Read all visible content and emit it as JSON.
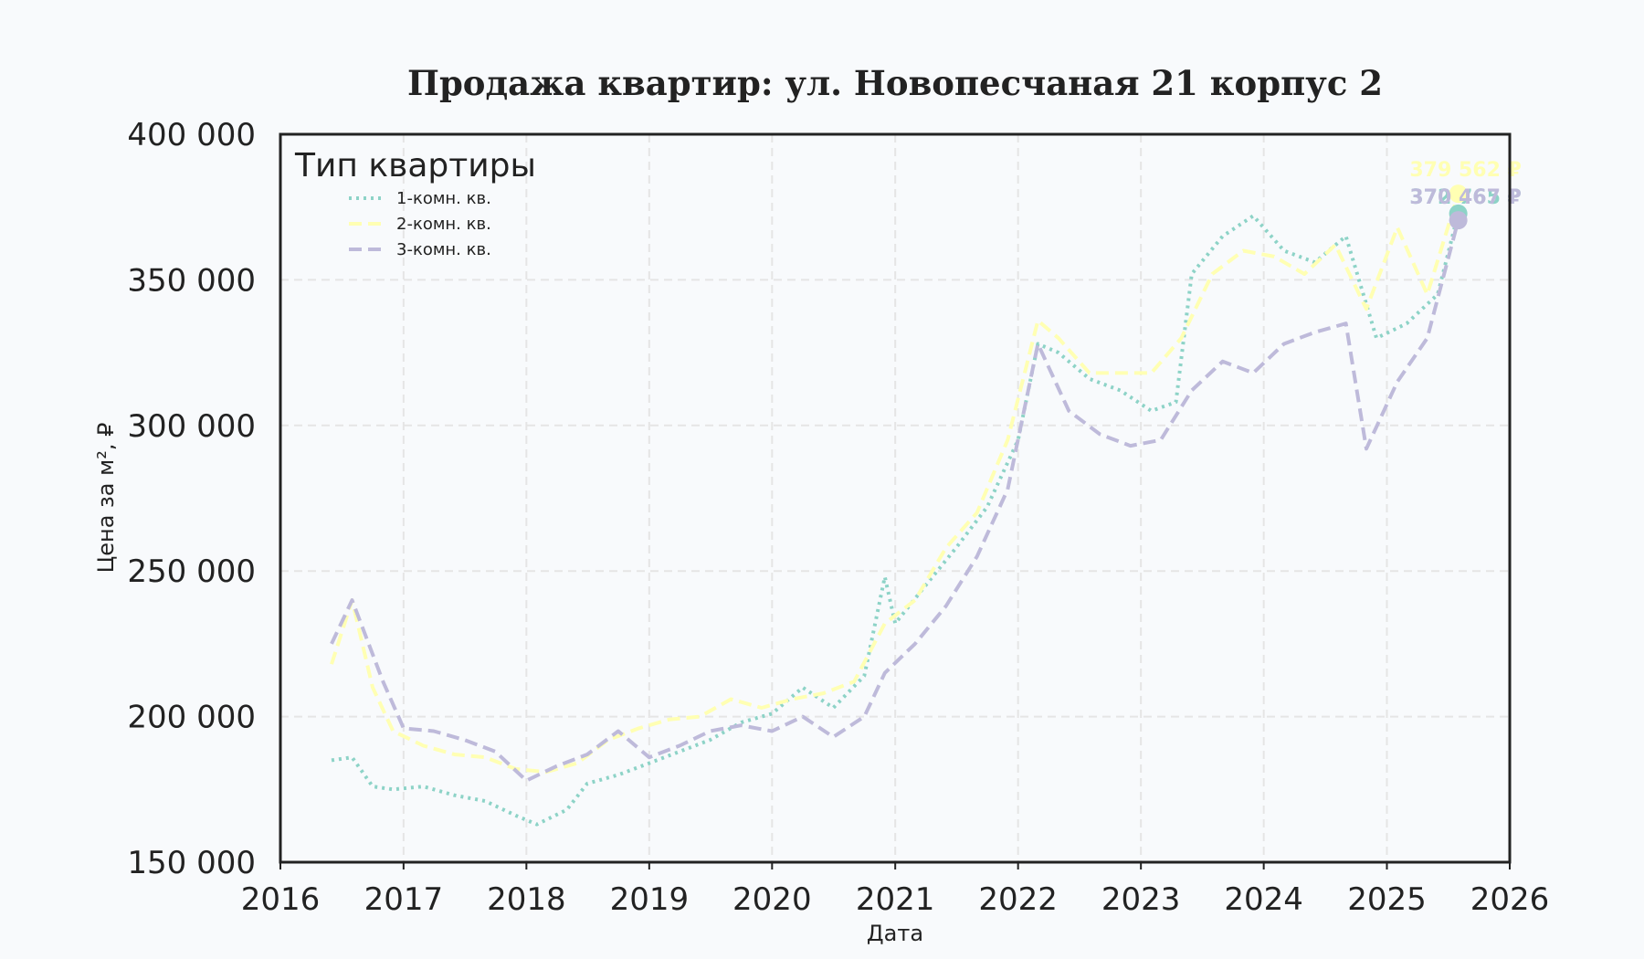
{
  "chart_data": {
    "type": "line",
    "title": "Продажа квартир: ул. Новопесчаная 21 корпус 2",
    "xlabel": "Дата",
    "ylabel": "Цена за м², ₽",
    "xlim": [
      "2016-01-01",
      "2026-01-01"
    ],
    "ylim": [
      150000,
      400000
    ],
    "x_ticks": [
      "2016",
      "2017",
      "2018",
      "2019",
      "2020",
      "2021",
      "2022",
      "2023",
      "2024",
      "2025",
      "2026"
    ],
    "y_ticks": [
      150000,
      200000,
      250000,
      300000,
      350000,
      400000
    ],
    "y_tick_labels": [
      "150 000",
      "200 000",
      "250 000",
      "300 000",
      "350 000",
      "400 000"
    ],
    "grid": true,
    "legend": {
      "title": "Тип квартиры",
      "placement": "top-left"
    },
    "series": [
      {
        "name": "1-комн. кв.",
        "color": "#8dd3c7",
        "style": "dotted",
        "end_label": "372 765 ₽",
        "points": [
          [
            "2016-06-01",
            185000
          ],
          [
            "2016-08-01",
            186000
          ],
          [
            "2016-10-01",
            176000
          ],
          [
            "2016-12-01",
            175000
          ],
          [
            "2017-03-01",
            176000
          ],
          [
            "2017-06-01",
            173000
          ],
          [
            "2017-09-01",
            171000
          ],
          [
            "2017-12-01",
            166000
          ],
          [
            "2018-02-01",
            163000
          ],
          [
            "2018-05-01",
            168000
          ],
          [
            "2018-07-01",
            177000
          ],
          [
            "2018-10-01",
            180000
          ],
          [
            "2019-01-01",
            184000
          ],
          [
            "2019-04-01",
            188000
          ],
          [
            "2019-07-01",
            192000
          ],
          [
            "2019-10-01",
            198000
          ],
          [
            "2020-01-01",
            201000
          ],
          [
            "2020-04-01",
            210000
          ],
          [
            "2020-07-01",
            203000
          ],
          [
            "2020-10-01",
            214000
          ],
          [
            "2020-12-01",
            248000
          ],
          [
            "2021-01-01",
            232000
          ],
          [
            "2021-04-01",
            245000
          ],
          [
            "2021-07-01",
            258000
          ],
          [
            "2021-10-01",
            272000
          ],
          [
            "2022-01-01",
            295000
          ],
          [
            "2022-03-01",
            328000
          ],
          [
            "2022-05-01",
            325000
          ],
          [
            "2022-08-01",
            316000
          ],
          [
            "2022-11-01",
            312000
          ],
          [
            "2023-02-01",
            305000
          ],
          [
            "2023-04-15",
            308000
          ],
          [
            "2023-06-01",
            352000
          ],
          [
            "2023-09-01",
            365000
          ],
          [
            "2023-12-01",
            372000
          ],
          [
            "2024-03-01",
            360000
          ],
          [
            "2024-06-01",
            356000
          ],
          [
            "2024-09-01",
            365000
          ],
          [
            "2024-12-01",
            330000
          ],
          [
            "2025-03-01",
            335000
          ],
          [
            "2025-06-01",
            345000
          ],
          [
            "2025-08-01",
            372765
          ]
        ]
      },
      {
        "name": "2-комн. кв.",
        "color": "#ffffb3",
        "style": "dashed",
        "end_label": "379 562 ₽",
        "points": [
          [
            "2016-06-01",
            218000
          ],
          [
            "2016-08-01",
            240000
          ],
          [
            "2016-10-01",
            210000
          ],
          [
            "2016-12-01",
            195000
          ],
          [
            "2017-03-01",
            190000
          ],
          [
            "2017-06-01",
            187000
          ],
          [
            "2017-09-01",
            186000
          ],
          [
            "2017-12-01",
            182000
          ],
          [
            "2018-03-01",
            181000
          ],
          [
            "2018-06-01",
            184000
          ],
          [
            "2018-09-01",
            192000
          ],
          [
            "2018-12-01",
            196000
          ],
          [
            "2019-03-01",
            199000
          ],
          [
            "2019-06-01",
            200000
          ],
          [
            "2019-09-01",
            206000
          ],
          [
            "2019-12-01",
            203000
          ],
          [
            "2020-03-01",
            206000
          ],
          [
            "2020-06-01",
            208000
          ],
          [
            "2020-09-01",
            212000
          ],
          [
            "2020-12-01",
            232000
          ],
          [
            "2021-03-01",
            240000
          ],
          [
            "2021-06-01",
            258000
          ],
          [
            "2021-09-01",
            270000
          ],
          [
            "2021-12-01",
            295000
          ],
          [
            "2022-03-01",
            336000
          ],
          [
            "2022-05-01",
            330000
          ],
          [
            "2022-08-01",
            318000
          ],
          [
            "2022-11-01",
            318000
          ],
          [
            "2023-02-01",
            318000
          ],
          [
            "2023-05-01",
            330000
          ],
          [
            "2023-08-01",
            352000
          ],
          [
            "2023-11-01",
            360000
          ],
          [
            "2024-02-01",
            358000
          ],
          [
            "2024-05-01",
            352000
          ],
          [
            "2024-08-01",
            362000
          ],
          [
            "2024-11-01",
            340000
          ],
          [
            "2025-02-01",
            368000
          ],
          [
            "2025-05-01",
            345000
          ],
          [
            "2025-08-01",
            379562
          ]
        ]
      },
      {
        "name": "3-комн. кв.",
        "color": "#bebada",
        "style": "dashed",
        "end_label": "370 467 ₽",
        "points": [
          [
            "2016-06-01",
            225000
          ],
          [
            "2016-08-01",
            240000
          ],
          [
            "2016-11-01",
            212000
          ],
          [
            "2017-01-01",
            196000
          ],
          [
            "2017-04-01",
            195000
          ],
          [
            "2017-07-01",
            192000
          ],
          [
            "2017-10-01",
            188000
          ],
          [
            "2018-01-01",
            178000
          ],
          [
            "2018-04-01",
            183000
          ],
          [
            "2018-07-01",
            187000
          ],
          [
            "2018-10-01",
            195000
          ],
          [
            "2019-01-01",
            186000
          ],
          [
            "2019-04-01",
            190000
          ],
          [
            "2019-07-01",
            195000
          ],
          [
            "2019-10-01",
            197000
          ],
          [
            "2020-01-01",
            195000
          ],
          [
            "2020-04-01",
            200000
          ],
          [
            "2020-07-01",
            193000
          ],
          [
            "2020-10-01",
            200000
          ],
          [
            "2020-12-01",
            215000
          ],
          [
            "2021-03-01",
            225000
          ],
          [
            "2021-06-01",
            238000
          ],
          [
            "2021-09-01",
            255000
          ],
          [
            "2021-12-01",
            278000
          ],
          [
            "2022-03-01",
            328000
          ],
          [
            "2022-06-01",
            305000
          ],
          [
            "2022-09-01",
            297000
          ],
          [
            "2022-12-01",
            293000
          ],
          [
            "2023-03-01",
            295000
          ],
          [
            "2023-06-01",
            312000
          ],
          [
            "2023-09-01",
            322000
          ],
          [
            "2023-12-01",
            318000
          ],
          [
            "2024-03-01",
            328000
          ],
          [
            "2024-06-01",
            332000
          ],
          [
            "2024-09-01",
            335000
          ],
          [
            "2024-11-01",
            292000
          ],
          [
            "2025-02-01",
            315000
          ],
          [
            "2025-05-01",
            330000
          ],
          [
            "2025-08-01",
            370467
          ]
        ]
      }
    ]
  }
}
